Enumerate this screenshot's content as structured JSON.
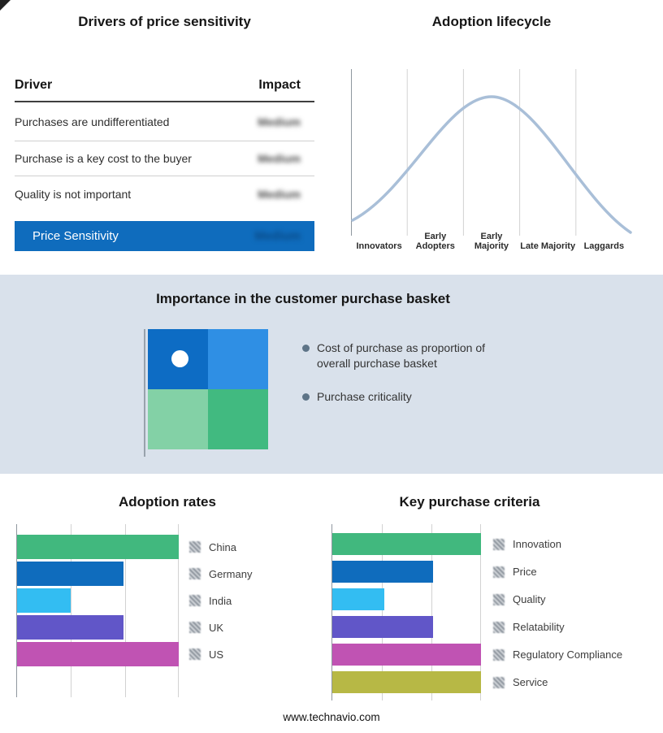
{
  "page": {
    "footer": "www.technavio.com"
  },
  "drivers_table": {
    "title": "Drivers of price sensitivity",
    "columns": {
      "driver": "Driver",
      "impact": "Impact"
    },
    "rows": [
      {
        "driver": "Purchases are undifferentiated",
        "impact": "Medium"
      },
      {
        "driver": "Purchase is a key cost to the buyer",
        "impact": "Medium"
      },
      {
        "driver": "Quality is not important",
        "impact": "Medium"
      }
    ],
    "highlight_row": {
      "driver": "Price Sensitivity",
      "impact": "Medium"
    },
    "highlight_color": "#0f6cbd"
  },
  "adoption_lifecycle": {
    "title": "Adoption lifecycle",
    "stages": [
      "Innovators",
      "Early Adopters",
      "Early Majority",
      "Late Majority",
      "Laggards"
    ],
    "curve_color": "#a9bfd8"
  },
  "purchase_basket": {
    "title": "Importance in the customer purchase basket",
    "bullets": [
      "Cost of purchase as proportion of overall purchase basket",
      "Purchase criticality"
    ],
    "quadrant_colors": {
      "top_left": "#0d6cc4",
      "top_right": "#2f8fe4",
      "bottom_left": "#83d1a6",
      "bottom_right": "#41ba80"
    },
    "background": "#d9e1eb"
  },
  "chart_data": [
    {
      "type": "bar",
      "orientation": "horizontal",
      "title": "Adoption rates",
      "categories": [
        "China",
        "Germany",
        "India",
        "UK",
        "US"
      ],
      "values": [
        100,
        66,
        33,
        66,
        100
      ],
      "value_unit": "percent_of_max",
      "xlim": [
        0,
        100
      ],
      "grid": "vertical_thirds",
      "legend_position": "right",
      "colors": [
        "#41b87e",
        "#0f6cbd",
        "#33bdf2",
        "#6156c8",
        "#c053b3"
      ]
    },
    {
      "type": "bar",
      "orientation": "horizontal",
      "title": "Key purchase criteria",
      "categories": [
        "Innovation",
        "Price",
        "Quality",
        "Relatability",
        "Regulatory Compliance",
        "Service"
      ],
      "values": [
        100,
        68,
        35,
        68,
        100,
        100
      ],
      "value_unit": "percent_of_max",
      "xlim": [
        0,
        100
      ],
      "grid": "vertical_thirds",
      "legend_position": "right",
      "colors": [
        "#41b87e",
        "#0f6cbd",
        "#33bdf2",
        "#6156c8",
        "#c053b3",
        "#b7b845"
      ]
    }
  ]
}
